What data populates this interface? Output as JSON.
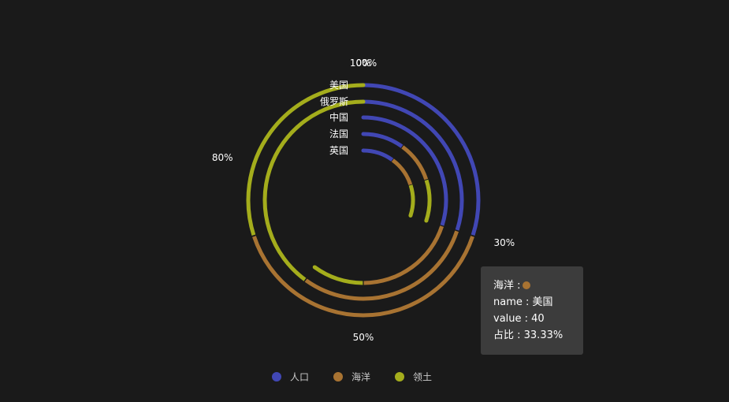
{
  "chart_data": {
    "type": "polar-bar",
    "categories": [
      "美国",
      "俄罗斯",
      "中国",
      "法国",
      "英国"
    ],
    "series": [
      {
        "name": "人口",
        "values": [
          30,
          30,
          30,
          10,
          10
        ]
      },
      {
        "name": "海洋",
        "values": [
          40,
          30,
          20,
          10,
          10
        ]
      },
      {
        "name": "领土",
        "values": [
          30,
          40,
          10,
          10,
          10
        ]
      }
    ],
    "angle_ticks": [
      "0%",
      "30%",
      "50%",
      "80%",
      "100%"
    ],
    "colors": {
      "人口": "#4147b4",
      "海洋": "#a87332",
      "领土": "#a4ad1c"
    },
    "background": "#1a1a1a",
    "legend_placement": "bottom-center"
  },
  "tooltip": {
    "series_line": "海洋 :",
    "name_line": "name : 美国",
    "value_line": "value : 40",
    "ratio_line": "占比 : 33.33%",
    "dot_color": "#a87332"
  }
}
